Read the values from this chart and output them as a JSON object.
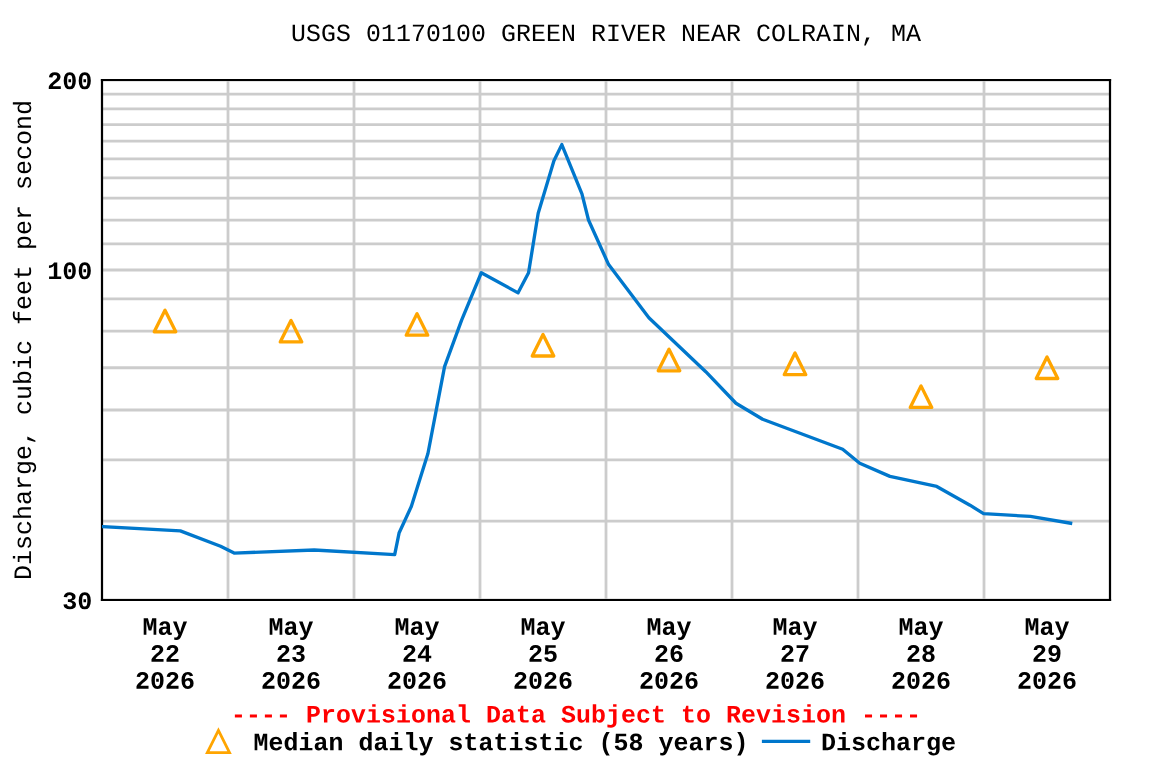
{
  "chart_data": {
    "type": "line",
    "title": "USGS 01170100 GREEN RIVER NEAR COLRAIN, MA",
    "ylabel": "Discharge, cubic feet per second",
    "annotations": [
      "---- Provisional Data Subject to Revision ----"
    ],
    "log": "y",
    "grid": true,
    "legend": "bottom",
    "xlim": [
      "2026-05-22T00:00",
      "2026-05-30T00:00"
    ],
    "xticks": [
      {
        "value": "2026-05-22T12:00",
        "label": "May\n22\n2026"
      },
      {
        "value": "2026-05-23T12:00",
        "label": "May\n23\n2026"
      },
      {
        "value": "2026-05-24T12:00",
        "label": "May\n24\n2026"
      },
      {
        "value": "2026-05-25T12:00",
        "label": "May\n25\n2026"
      },
      {
        "value": "2026-05-26T12:00",
        "label": "May\n26\n2026"
      },
      {
        "value": "2026-05-27T12:00",
        "label": "May\n27\n2026"
      },
      {
        "value": "2026-05-28T12:00",
        "label": "May\n28\n2026"
      },
      {
        "value": "2026-05-29T12:00",
        "label": "May\n29\n2026"
      },
      {
        "value": "2026-05-23T00:00",
        "label": null
      },
      {
        "value": "2026-05-24T00:00",
        "label": null
      },
      {
        "value": "2026-05-25T00:00",
        "label": null
      },
      {
        "value": "2026-05-26T00:00",
        "label": null
      },
      {
        "value": "2026-05-27T00:00",
        "label": null
      },
      {
        "value": "2026-05-28T00:00",
        "label": null
      },
      {
        "value": "2026-05-29T00:00",
        "label": null
      }
    ],
    "ylim": [
      30,
      200
    ],
    "yticks": [
      30,
      {
        "value": 40,
        "label": null
      },
      {
        "value": 50,
        "label": null
      },
      {
        "value": 60,
        "label": null
      },
      {
        "value": 70,
        "label": null
      },
      {
        "value": 80,
        "label": null
      },
      {
        "value": 90,
        "label": null
      },
      100,
      {
        "value": 110,
        "label": null
      },
      {
        "value": 120,
        "label": null
      },
      {
        "value": 130,
        "label": null
      },
      {
        "value": 140,
        "label": null
      },
      {
        "value": 150,
        "label": null
      },
      {
        "value": 160,
        "label": null
      },
      {
        "value": 170,
        "label": null
      },
      {
        "value": 180,
        "label": null
      },
      {
        "value": 190,
        "label": null
      },
      200
    ],
    "series": [
      {
        "name": "Median daily statistic (58 years)",
        "type": "scatter",
        "marker": "triangle",
        "color": "#ffa500",
        "x": [
          "2026-05-22T12:00",
          "2026-05-23T12:00",
          "2026-05-24T12:00",
          "2026-05-25T12:00",
          "2026-05-26T12:00",
          "2026-05-27T12:00",
          "2026-05-28T12:00",
          "2026-05-29T12:00"
        ],
        "values": [
          83,
          80,
          82,
          76,
          72,
          71,
          63,
          70
        ]
      },
      {
        "name": "Discharge",
        "color": "#0077cc",
        "x": [
          "2026-05-22T00:15",
          "2026-05-22T14:55",
          "2026-05-22T22:35",
          "2026-05-23T01:10",
          "2026-05-23T16:25",
          "2026-05-24T07:45",
          "2026-05-24T08:35",
          "2026-05-24T10:55",
          "2026-05-24T14:05",
          "2026-05-24T17:15",
          "2026-05-24T20:30",
          "2026-05-25T00:15",
          "2026-05-25T07:15",
          "2026-05-25T09:15",
          "2026-05-25T11:05",
          "2026-05-25T14:05",
          "2026-05-25T15:35",
          "2026-05-25T19:25",
          "2026-05-25T20:40",
          "2026-05-26T00:30",
          "2026-05-26T08:10",
          "2026-05-26T19:00",
          "2026-05-27T00:45",
          "2026-05-27T05:50",
          "2026-05-27T21:05",
          "2026-05-28T00:20",
          "2026-05-28T06:05",
          "2026-05-28T15:00",
          "2026-05-28T21:20",
          "2026-05-28T23:55",
          "2026-05-29T08:50",
          "2026-05-29T16:30"
        ],
        "values": [
          39.2,
          38.6,
          36.5,
          35.6,
          36.0,
          35.4,
          38.3,
          42.2,
          51.2,
          70.3,
          83.3,
          99,
          92,
          99,
          123,
          149,
          158,
          132,
          120,
          102,
          84,
          69,
          61.5,
          58,
          52,
          49.4,
          47.1,
          45.4,
          42.4,
          41.1,
          40.7,
          39.7
        ]
      }
    ]
  }
}
